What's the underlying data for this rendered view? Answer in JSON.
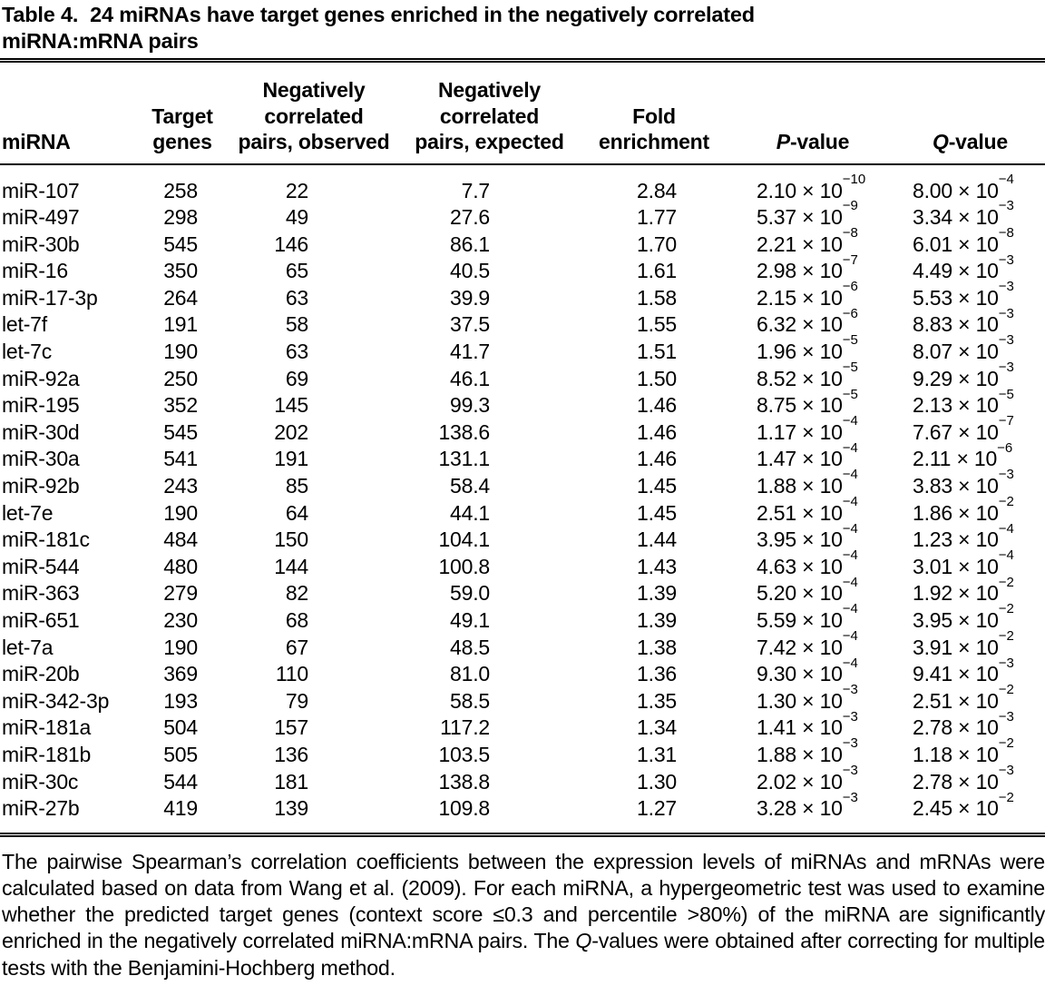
{
  "table": {
    "title_label": "Table 4.",
    "title_text": "24 miRNAs have target genes enriched in the negatively correlated miRNA:mRNA pairs",
    "columns": [
      {
        "id": "mirna",
        "lines": [
          "miRNA"
        ]
      },
      {
        "id": "target-genes",
        "lines": [
          "Target",
          "genes"
        ]
      },
      {
        "id": "observed",
        "lines": [
          "Negatively",
          "correlated",
          "pairs, observed"
        ]
      },
      {
        "id": "expected",
        "lines": [
          "Negatively",
          "correlated",
          "pairs, expected"
        ]
      },
      {
        "id": "fold",
        "lines": [
          "Fold",
          "enrichment"
        ]
      },
      {
        "id": "p-value",
        "lines": [
          "P-value"
        ],
        "italic_first": true
      },
      {
        "id": "q-value",
        "lines": [
          "Q-value"
        ],
        "italic_first": true
      }
    ],
    "rows": [
      {
        "mirna": "miR-107",
        "target_genes": "258",
        "observed": "22",
        "expected": "7.7",
        "fold": "2.84",
        "p": "2.10 × 10^−10",
        "q": "8.00 × 10^−4"
      },
      {
        "mirna": "miR-497",
        "target_genes": "298",
        "observed": "49",
        "expected": "27.6",
        "fold": "1.77",
        "p": "5.37 × 10^−9",
        "q": "3.34 × 10^−3"
      },
      {
        "mirna": "miR-30b",
        "target_genes": "545",
        "observed": "146",
        "expected": "86.1",
        "fold": "1.70",
        "p": "2.21 × 10^−8",
        "q": "6.01 × 10^−8"
      },
      {
        "mirna": "miR-16",
        "target_genes": "350",
        "observed": "65",
        "expected": "40.5",
        "fold": "1.61",
        "p": "2.98 × 10^−7",
        "q": "4.49 × 10^−3"
      },
      {
        "mirna": "miR-17-3p",
        "target_genes": "264",
        "observed": "63",
        "expected": "39.9",
        "fold": "1.58",
        "p": "2.15 × 10^−6",
        "q": "5.53 × 10^−3"
      },
      {
        "mirna": "let-7f",
        "target_genes": "191",
        "observed": "58",
        "expected": "37.5",
        "fold": "1.55",
        "p": "6.32 × 10^−6",
        "q": "8.83 × 10^−3"
      },
      {
        "mirna": "let-7c",
        "target_genes": "190",
        "observed": "63",
        "expected": "41.7",
        "fold": "1.51",
        "p": "1.96 × 10^−5",
        "q": "8.07 × 10^−3"
      },
      {
        "mirna": "miR-92a",
        "target_genes": "250",
        "observed": "69",
        "expected": "46.1",
        "fold": "1.50",
        "p": "8.52 × 10^−5",
        "q": "9.29 × 10^−3"
      },
      {
        "mirna": "miR-195",
        "target_genes": "352",
        "observed": "145",
        "expected": "99.3",
        "fold": "1.46",
        "p": "8.75 × 10^−5",
        "q": "2.13 × 10^−5"
      },
      {
        "mirna": "miR-30d",
        "target_genes": "545",
        "observed": "202",
        "expected": "138.6",
        "fold": "1.46",
        "p": "1.17 × 10^−4",
        "q": "7.67 × 10^−7"
      },
      {
        "mirna": "miR-30a",
        "target_genes": "541",
        "observed": "191",
        "expected": "131.1",
        "fold": "1.46",
        "p": "1.47 × 10^−4",
        "q": "2.11 × 10^−6"
      },
      {
        "mirna": "miR-92b",
        "target_genes": "243",
        "observed": "85",
        "expected": "58.4",
        "fold": "1.45",
        "p": "1.88 × 10^−4",
        "q": "3.83 × 10^−3"
      },
      {
        "mirna": "let-7e",
        "target_genes": "190",
        "observed": "64",
        "expected": "44.1",
        "fold": "1.45",
        "p": "2.51 × 10^−4",
        "q": "1.86 × 10^−2"
      },
      {
        "mirna": "miR-181c",
        "target_genes": "484",
        "observed": "150",
        "expected": "104.1",
        "fold": "1.44",
        "p": "3.95 × 10^−4",
        "q": "1.23 × 10^−4"
      },
      {
        "mirna": "miR-544",
        "target_genes": "480",
        "observed": "144",
        "expected": "100.8",
        "fold": "1.43",
        "p": "4.63 × 10^−4",
        "q": "3.01 × 10^−4"
      },
      {
        "mirna": "miR-363",
        "target_genes": "279",
        "observed": "82",
        "expected": "59.0",
        "fold": "1.39",
        "p": "5.20 × 10^−4",
        "q": "1.92 × 10^−2"
      },
      {
        "mirna": "miR-651",
        "target_genes": "230",
        "observed": "68",
        "expected": "49.1",
        "fold": "1.39",
        "p": "5.59 × 10^−4",
        "q": "3.95 × 10^−2"
      },
      {
        "mirna": "let-7a",
        "target_genes": "190",
        "observed": "67",
        "expected": "48.5",
        "fold": "1.38",
        "p": "7.42 × 10^−4",
        "q": "3.91 × 10^−2"
      },
      {
        "mirna": "miR-20b",
        "target_genes": "369",
        "observed": "110",
        "expected": "81.0",
        "fold": "1.36",
        "p": "9.30 × 10^−4",
        "q": "9.41 × 10^−3"
      },
      {
        "mirna": "miR-342-3p",
        "target_genes": "193",
        "observed": "79",
        "expected": "58.5",
        "fold": "1.35",
        "p": "1.30 × 10^−3",
        "q": "2.51 × 10^−2"
      },
      {
        "mirna": "miR-181a",
        "target_genes": "504",
        "observed": "157",
        "expected": "117.2",
        "fold": "1.34",
        "p": "1.41 × 10^−3",
        "q": "2.78 × 10^−3"
      },
      {
        "mirna": "miR-181b",
        "target_genes": "505",
        "observed": "136",
        "expected": "103.5",
        "fold": "1.31",
        "p": "1.88 × 10^−3",
        "q": "1.18 × 10^−2"
      },
      {
        "mirna": "miR-30c",
        "target_genes": "544",
        "observed": "181",
        "expected": "138.8",
        "fold": "1.30",
        "p": "2.02 × 10^−3",
        "q": "2.78 × 10^−3"
      },
      {
        "mirna": "miR-27b",
        "target_genes": "419",
        "observed": "139",
        "expected": "109.8",
        "fold": "1.27",
        "p": "3.28 × 10^−3",
        "q": "2.45 × 10^−2"
      }
    ],
    "footnote": [
      {
        "t": "The pairwise Spearman’s correlation coefficients between the expression levels of miRNAs and mRNAs were calculated based on data from Wang et al. (2009). For each miRNA, a hypergeometric test was used to examine whether the predicted target genes (context score ≤0.3 and percentile >80%) of the miRNA are significantly enriched in the negatively correlated miRNA:mRNA pairs. The "
      },
      {
        "t": "Q",
        "i": true
      },
      {
        "t": "-values were obtained after correcting for multiple tests with the Benjamini-Hochberg method."
      }
    ]
  }
}
